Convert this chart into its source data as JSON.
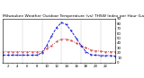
{
  "title": "Milwaukee Weather Outdoor Temperature (vs) THSW Index per Hour (Last 24 Hours)",
  "hours": [
    0,
    1,
    2,
    3,
    4,
    5,
    6,
    7,
    8,
    9,
    10,
    11,
    12,
    13,
    14,
    15,
    16,
    17,
    18,
    19,
    20,
    21,
    22,
    23
  ],
  "temp": [
    22,
    22,
    22,
    22,
    22,
    22,
    22,
    22,
    22,
    28,
    35,
    43,
    48,
    48,
    45,
    40,
    35,
    30,
    26,
    24,
    23,
    22,
    22,
    22
  ],
  "thsw": [
    15,
    15,
    15,
    15,
    15,
    15,
    15,
    15,
    20,
    35,
    55,
    72,
    82,
    78,
    65,
    50,
    35,
    22,
    16,
    15,
    14,
    14,
    14,
    13
  ],
  "temp_color": "#cc0000",
  "thsw_color": "#0000cc",
  "bg_color": "#ffffff",
  "plot_bg": "#ffffff",
  "grid_color": "#888888",
  "ylim_min": 0,
  "ylim_max": 90,
  "title_fontsize": 3.2,
  "tick_fontsize": 2.8,
  "linewidth": 0.6,
  "markersize": 0.8
}
